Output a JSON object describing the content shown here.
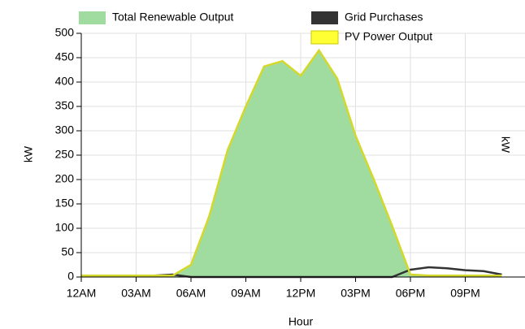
{
  "chart_data": {
    "type": "area",
    "xlabel": "Hour",
    "ylabel": "kW",
    "y2label": "kW",
    "x": [
      0,
      1,
      2,
      3,
      4,
      5,
      6,
      7,
      8,
      9,
      10,
      11,
      12,
      13,
      14,
      15,
      16,
      17,
      18,
      19,
      20,
      21,
      22,
      23
    ],
    "series": [
      {
        "name": "Total Renewable Output",
        "color": "#a0dca0",
        "style": "area",
        "values": [
          3,
          3,
          3,
          3,
          3,
          3,
          25,
          125,
          260,
          350,
          432,
          443,
          413,
          465,
          407,
          290,
          200,
          105,
          5,
          3,
          3,
          3,
          3,
          3
        ]
      },
      {
        "name": "Grid Purchases",
        "color": "#333333",
        "style": "line",
        "values": [
          3,
          3,
          3,
          3,
          3,
          5,
          0,
          0,
          0,
          0,
          0,
          0,
          0,
          0,
          0,
          0,
          0,
          0,
          15,
          20,
          18,
          14,
          12,
          5
        ]
      },
      {
        "name": "PV Power Output",
        "color": "#d4d82a",
        "style": "line",
        "legend_color": "#ffff33",
        "values": [
          3,
          3,
          3,
          3,
          3,
          3,
          25,
          125,
          260,
          350,
          432,
          443,
          413,
          465,
          407,
          290,
          200,
          105,
          5,
          3,
          3,
          3,
          3,
          3
        ]
      }
    ],
    "xlim": [
      0,
      24
    ],
    "ylim": [
      0,
      500
    ],
    "xticks": [
      {
        "value": 0,
        "label": "12AM"
      },
      {
        "value": 3,
        "label": "03AM"
      },
      {
        "value": 6,
        "label": "06AM"
      },
      {
        "value": 9,
        "label": "09AM"
      },
      {
        "value": 12,
        "label": "12PM"
      },
      {
        "value": 15,
        "label": "03PM"
      },
      {
        "value": 18,
        "label": "06PM"
      },
      {
        "value": 21,
        "label": "09PM"
      }
    ],
    "yticks": [
      0,
      50,
      100,
      150,
      200,
      250,
      300,
      350,
      400,
      450,
      500
    ],
    "grid": true
  }
}
